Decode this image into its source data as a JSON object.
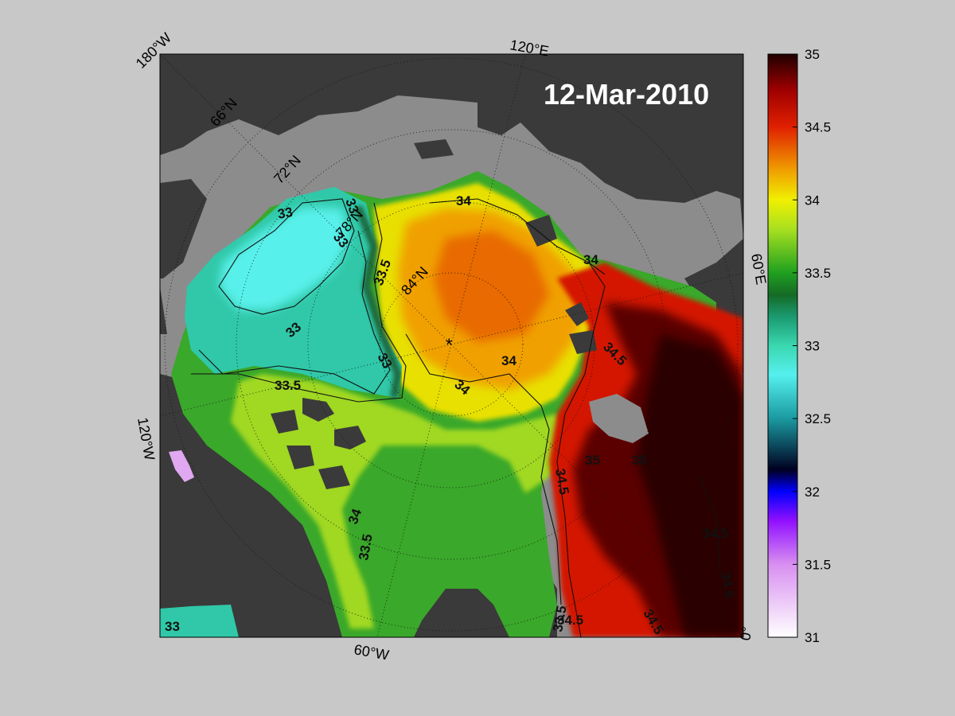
{
  "map": {
    "date": "12-Mar-2010",
    "longitude_labels": [
      "180°W",
      "120°E",
      "120°W",
      "60°W",
      "60°E",
      "0°"
    ],
    "latitude_labels": [
      "66°N",
      "72°N",
      "78°N",
      "84°N"
    ],
    "contour_labels": [
      "33",
      "33",
      "33",
      "33",
      "33",
      "33",
      "33.5",
      "33.5",
      "33.5",
      "33.5",
      "34",
      "34",
      "34",
      "34",
      "34",
      "34.5",
      "34.5",
      "34.5",
      "34.5",
      "35",
      "35",
      "34.5",
      "34.5"
    ],
    "north_pole_marker": "*",
    "colors": {
      "background": "#c8c8c8",
      "land": "#3a3a3a",
      "ice": "#8c8c8c"
    }
  },
  "colorbar": {
    "min": 31,
    "max": 35,
    "ticks": [
      "35",
      "34.5",
      "34",
      "33.5",
      "33",
      "32.5",
      "32",
      "31.5",
      "31"
    ],
    "stops": [
      {
        "value": 31.0,
        "color": "#ffffff"
      },
      {
        "value": 31.5,
        "color": "#d88ff0"
      },
      {
        "value": 31.8,
        "color": "#9010ff"
      },
      {
        "value": 32.0,
        "color": "#0000ff"
      },
      {
        "value": 32.15,
        "color": "#000020"
      },
      {
        "value": 32.5,
        "color": "#1a9aa0"
      },
      {
        "value": 32.8,
        "color": "#55f0ee"
      },
      {
        "value": 33.0,
        "color": "#3ad7b0"
      },
      {
        "value": 33.2,
        "color": "#1a9a70"
      },
      {
        "value": 33.35,
        "color": "#156a25"
      },
      {
        "value": 33.5,
        "color": "#20a020"
      },
      {
        "value": 33.8,
        "color": "#a8e020"
      },
      {
        "value": 34.0,
        "color": "#f0f000"
      },
      {
        "value": 34.2,
        "color": "#f0a000"
      },
      {
        "value": 34.5,
        "color": "#e02000"
      },
      {
        "value": 34.75,
        "color": "#a00000"
      },
      {
        "value": 35.0,
        "color": "#200000"
      }
    ]
  }
}
